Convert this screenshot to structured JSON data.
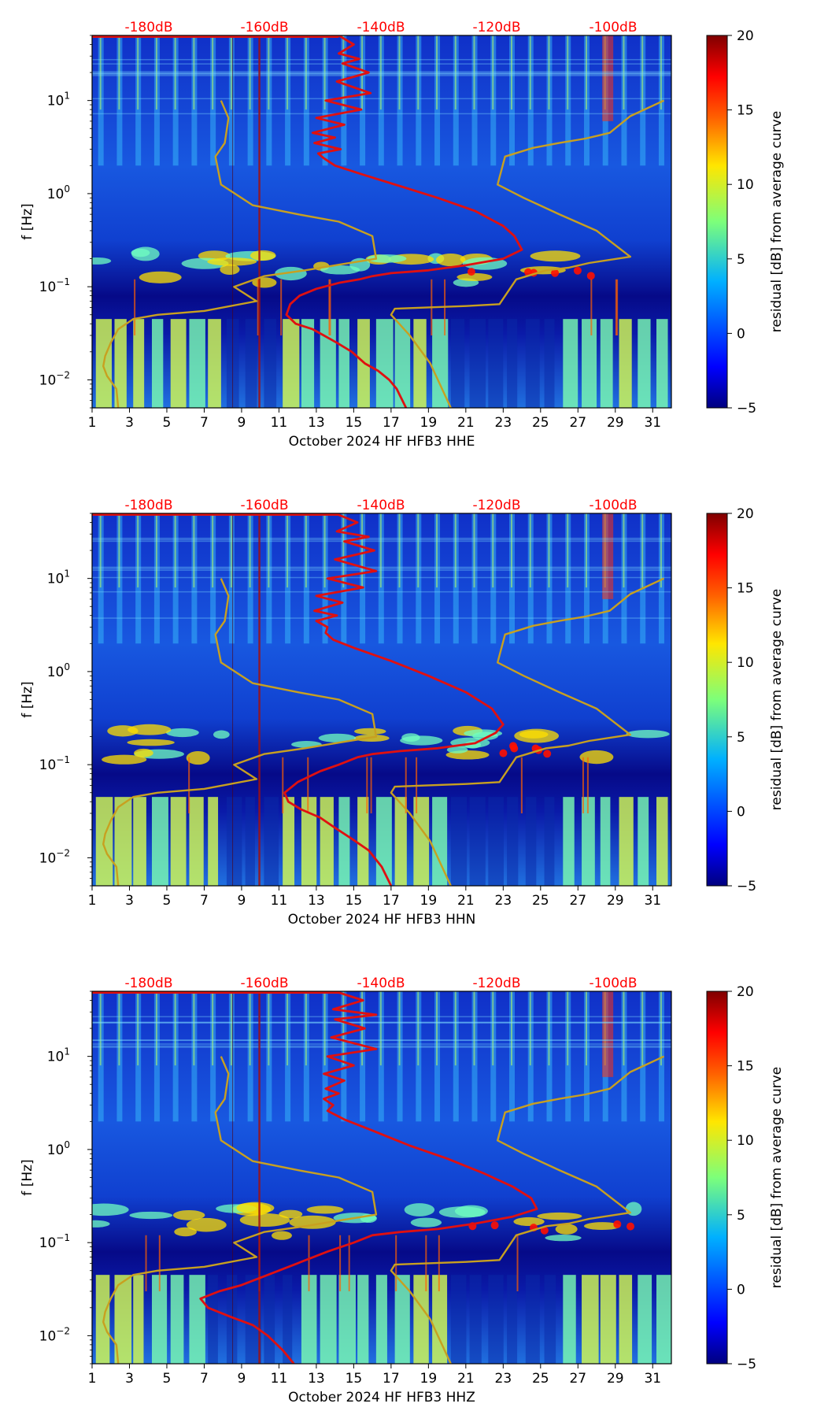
{
  "colors": {
    "noise_curve": "#e01010",
    "model_curve": "#c8a020",
    "db_label": "#ff0000",
    "colormap": "jet"
  },
  "chart_data": [
    {
      "type": "heatmap",
      "title": "",
      "xlabel": "October 2024 HF HFB3  HHE",
      "ylabel": "f [Hz]",
      "xlim": [
        1,
        32
      ],
      "ylim": [
        0.005,
        50
      ],
      "yscale": "log",
      "x_ticks": [
        "1",
        "3",
        "5",
        "7",
        "9",
        "11",
        "13",
        "15",
        "17",
        "19",
        "21",
        "23",
        "25",
        "27",
        "29",
        "31"
      ],
      "y_ticks": [
        {
          "label": "10",
          "exp": "−2",
          "value": 0.01
        },
        {
          "label": "10",
          "exp": "−1",
          "value": 0.1
        },
        {
          "label": "10",
          "exp": "0",
          "value": 1
        },
        {
          "label": "10",
          "exp": "1",
          "value": 10
        }
      ],
      "top_labels": [
        "-180dB",
        "-160dB",
        "-140dB",
        "-120dB",
        "-100dB"
      ],
      "colorbar": {
        "label": "residual [dB] from average curve",
        "range": [
          -5,
          20
        ],
        "ticks": [
          "−5",
          "0",
          "5",
          "10",
          "15",
          "20"
        ]
      },
      "series": [
        {
          "name": "noise-spectrum",
          "x": [
            14.2,
            15.0,
            14.2,
            15.3,
            14.4,
            15.8,
            14.1,
            15.9,
            13.5,
            15.4,
            13.0,
            14.5,
            12.8,
            14.0,
            12.9,
            14.3,
            13.1,
            13.4,
            14.0,
            15.5,
            17.5,
            19.5,
            21.5,
            23.0,
            23.6,
            24.0,
            23.0,
            21.0,
            19.0,
            17.0,
            16.0,
            15.3,
            14.2,
            13.0,
            12.1,
            11.6,
            11.4,
            11.9,
            12.8,
            13.4,
            14.1,
            14.9,
            15.6,
            16.3,
            16.9,
            17.3,
            17.8
          ],
          "y": [
            50,
            40,
            32,
            28,
            25,
            20,
            16,
            12,
            10,
            8,
            6.5,
            5.5,
            4.5,
            4,
            3.5,
            3,
            2.7,
            2.4,
            2.0,
            1.6,
            1.2,
            0.9,
            0.65,
            0.45,
            0.35,
            0.25,
            0.2,
            0.17,
            0.15,
            0.14,
            0.13,
            0.12,
            0.11,
            0.095,
            0.08,
            0.065,
            0.05,
            0.04,
            0.035,
            0.03,
            0.025,
            0.02,
            0.015,
            0.0125,
            0.01,
            0.008,
            0.005
          ]
        },
        {
          "name": "model-curve-low",
          "x": [
            7.9,
            8.3,
            8.1,
            7.6,
            7.9,
            9.6,
            12.0,
            14.2,
            16.0,
            16.2,
            14.4,
            12.4,
            10.2,
            8.6,
            9.8,
            7.0,
            4.5,
            3.2,
            2.4,
            2.0,
            1.7,
            1.6,
            1.8,
            2.3,
            2.4
          ],
          "y": [
            10,
            6.5,
            3.5,
            2.5,
            1.25,
            0.75,
            0.6,
            0.5,
            0.35,
            0.2,
            0.175,
            0.15,
            0.13,
            0.1,
            0.07,
            0.055,
            0.05,
            0.045,
            0.035,
            0.025,
            0.018,
            0.014,
            0.011,
            0.008,
            0.005
          ]
        },
        {
          "name": "model-curve-high",
          "x": [
            31.6,
            29.8,
            28.7,
            27.4,
            26.0,
            24.6,
            23.1,
            22.7,
            24.1,
            26.0,
            28.0,
            29.8,
            27.6,
            26.5,
            25.3,
            23.7,
            22.8,
            21.0,
            19.0,
            17.2,
            17.0,
            18.0,
            19.1,
            20.2
          ],
          "y": [
            10,
            6.8,
            4.5,
            3.9,
            3.5,
            3.1,
            2.5,
            1.25,
            0.9,
            0.6,
            0.4,
            0.21,
            0.18,
            0.16,
            0.15,
            0.12,
            0.065,
            0.062,
            0.06,
            0.058,
            0.05,
            0.03,
            0.015,
            0.005
          ]
        }
      ]
    },
    {
      "type": "heatmap",
      "title": "",
      "xlabel": "October 2024 HF HFB3  HHN",
      "ylabel": "f [Hz]",
      "xlim": [
        1,
        32
      ],
      "ylim": [
        0.005,
        50
      ],
      "yscale": "log",
      "x_ticks": [
        "1",
        "3",
        "5",
        "7",
        "9",
        "11",
        "13",
        "15",
        "17",
        "19",
        "21",
        "23",
        "25",
        "27",
        "29",
        "31"
      ],
      "y_ticks": [
        {
          "label": "10",
          "exp": "−2",
          "value": 0.01
        },
        {
          "label": "10",
          "exp": "−1",
          "value": 0.1
        },
        {
          "label": "10",
          "exp": "0",
          "value": 1
        },
        {
          "label": "10",
          "exp": "1",
          "value": 10
        }
      ],
      "top_labels": [
        "-180dB",
        "-160dB",
        "-140dB",
        "-120dB",
        "-100dB"
      ],
      "colorbar": {
        "label": "residual [dB] from average curve",
        "range": [
          -5,
          20
        ],
        "ticks": [
          "−5",
          "0",
          "5",
          "10",
          "15",
          "20"
        ]
      },
      "series": [
        {
          "name": "noise-spectrum",
          "x": [
            14.0,
            15.2,
            14.1,
            15.8,
            14.5,
            16.1,
            14.0,
            16.2,
            13.6,
            15.5,
            13.0,
            14.4,
            12.9,
            14.1,
            13.0,
            13.6,
            13.5,
            13.9,
            15.0,
            17.0,
            19.0,
            21.0,
            22.4,
            23.0,
            22.6,
            21.5,
            19.5,
            17.5,
            16.0,
            15.2,
            14.2,
            13.2,
            12.0,
            11.3,
            11.5,
            12.2,
            13.2,
            14.0,
            14.9,
            15.8,
            16.5,
            17.0
          ],
          "y": [
            50,
            40,
            32,
            28,
            25,
            20,
            16,
            12,
            10,
            8,
            6.5,
            5.5,
            4.5,
            4,
            3.5,
            3,
            2.6,
            2.2,
            1.8,
            1.3,
            0.9,
            0.6,
            0.4,
            0.27,
            0.22,
            0.17,
            0.15,
            0.14,
            0.13,
            0.12,
            0.1,
            0.085,
            0.065,
            0.05,
            0.04,
            0.033,
            0.027,
            0.021,
            0.016,
            0.012,
            0.008,
            0.005
          ]
        },
        {
          "name": "model-curve-low",
          "x": [
            7.9,
            8.3,
            8.1,
            7.6,
            7.9,
            9.6,
            12.0,
            14.2,
            16.0,
            16.2,
            14.4,
            12.4,
            10.2,
            8.6,
            9.8,
            7.0,
            4.5,
            3.2,
            2.4,
            2.0,
            1.7,
            1.6,
            1.8,
            2.3,
            2.4
          ],
          "y": [
            10,
            6.5,
            3.5,
            2.5,
            1.25,
            0.75,
            0.6,
            0.5,
            0.35,
            0.2,
            0.175,
            0.15,
            0.13,
            0.1,
            0.07,
            0.055,
            0.05,
            0.045,
            0.035,
            0.025,
            0.018,
            0.014,
            0.011,
            0.008,
            0.005
          ]
        },
        {
          "name": "model-curve-high",
          "x": [
            31.6,
            29.8,
            28.7,
            27.4,
            26.0,
            24.6,
            23.1,
            22.7,
            24.1,
            26.0,
            28.0,
            29.8,
            27.6,
            26.5,
            25.3,
            23.7,
            22.8,
            21.0,
            19.0,
            17.2,
            17.0,
            18.0,
            19.1,
            20.2
          ],
          "y": [
            10,
            6.8,
            4.5,
            3.9,
            3.5,
            3.1,
            2.5,
            1.25,
            0.9,
            0.6,
            0.4,
            0.21,
            0.18,
            0.16,
            0.15,
            0.12,
            0.065,
            0.062,
            0.06,
            0.058,
            0.05,
            0.03,
            0.015,
            0.005
          ]
        }
      ]
    },
    {
      "type": "heatmap",
      "title": "",
      "xlabel": "October 2024 HF HFB3  HHZ",
      "ylabel": "f [Hz]",
      "xlim": [
        1,
        32
      ],
      "ylim": [
        0.005,
        50
      ],
      "yscale": "log",
      "x_ticks": [
        "1",
        "3",
        "5",
        "7",
        "9",
        "11",
        "13",
        "15",
        "17",
        "19",
        "21",
        "23",
        "25",
        "27",
        "29",
        "31"
      ],
      "y_ticks": [
        {
          "label": "10",
          "exp": "−2",
          "value": 0.01
        },
        {
          "label": "10",
          "exp": "−1",
          "value": 0.1
        },
        {
          "label": "10",
          "exp": "0",
          "value": 1
        },
        {
          "label": "10",
          "exp": "1",
          "value": 10
        }
      ],
      "top_labels": [
        "-180dB",
        "-160dB",
        "-140dB",
        "-120dB",
        "-100dB"
      ],
      "colorbar": {
        "label": "residual [dB] from average curve",
        "range": [
          -5,
          20
        ],
        "ticks": [
          "−5",
          "0",
          "5",
          "10",
          "15",
          "20"
        ]
      },
      "series": [
        {
          "name": "noise-spectrum",
          "x": [
            14.0,
            15.5,
            13.9,
            16.2,
            14.0,
            15.6,
            13.8,
            16.2,
            13.6,
            15.0,
            13.4,
            14.5,
            13.5,
            14.2,
            13.4,
            13.9,
            13.6,
            14.5,
            16.0,
            18.0,
            20.0,
            22.0,
            23.5,
            24.5,
            24.8,
            23.5,
            21.5,
            19.5,
            17.5,
            16.0,
            15.0,
            13.6,
            12.0,
            10.4,
            9.0,
            7.8,
            6.8,
            7.2,
            8.4,
            9.6,
            10.4,
            11.2,
            11.8
          ],
          "y": [
            50,
            40,
            32,
            28,
            25,
            20,
            16,
            12,
            10,
            8,
            6.5,
            5.5,
            4.5,
            4,
            3.5,
            3,
            2.6,
            2.1,
            1.6,
            1.1,
            0.8,
            0.55,
            0.4,
            0.3,
            0.23,
            0.19,
            0.16,
            0.14,
            0.13,
            0.12,
            0.1,
            0.08,
            0.06,
            0.045,
            0.035,
            0.03,
            0.025,
            0.02,
            0.016,
            0.013,
            0.01,
            0.007,
            0.005
          ]
        },
        {
          "name": "model-curve-low",
          "x": [
            7.9,
            8.3,
            8.1,
            7.6,
            7.9,
            9.6,
            12.0,
            14.2,
            16.0,
            16.2,
            14.4,
            12.4,
            10.2,
            8.6,
            9.8,
            7.0,
            4.5,
            3.2,
            2.4,
            2.0,
            1.7,
            1.6,
            1.8,
            2.3,
            2.4
          ],
          "y": [
            10,
            6.5,
            3.5,
            2.5,
            1.25,
            0.75,
            0.6,
            0.5,
            0.35,
            0.2,
            0.175,
            0.15,
            0.13,
            0.1,
            0.07,
            0.055,
            0.05,
            0.045,
            0.035,
            0.025,
            0.018,
            0.014,
            0.011,
            0.008,
            0.005
          ]
        },
        {
          "name": "model-curve-high",
          "x": [
            31.6,
            29.8,
            28.7,
            27.4,
            26.0,
            24.6,
            23.1,
            22.7,
            24.1,
            26.0,
            28.0,
            29.8,
            27.6,
            26.5,
            25.3,
            23.7,
            22.8,
            21.0,
            19.0,
            17.2,
            17.0,
            18.0,
            19.1,
            20.2
          ],
          "y": [
            10,
            6.8,
            4.5,
            3.9,
            3.5,
            3.1,
            2.5,
            1.25,
            0.9,
            0.6,
            0.4,
            0.21,
            0.18,
            0.16,
            0.15,
            0.12,
            0.065,
            0.062,
            0.06,
            0.058,
            0.05,
            0.03,
            0.015,
            0.005
          ]
        }
      ]
    }
  ]
}
